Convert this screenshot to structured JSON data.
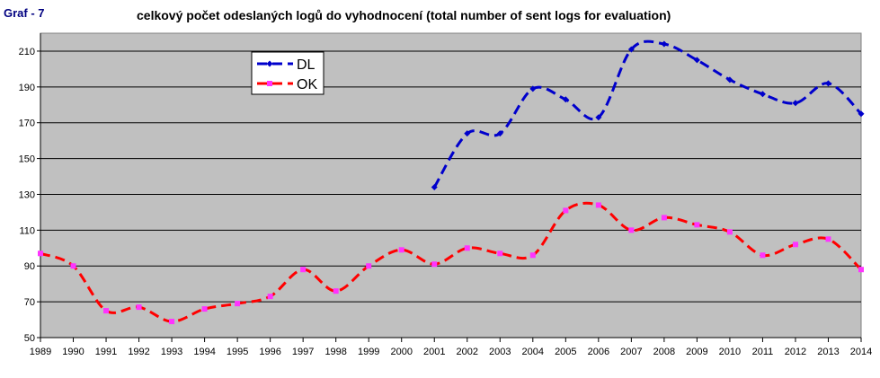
{
  "header": {
    "graf_label": "Graf - 7",
    "title": "celkový počet odeslaných logů do vyhodnocení (total number of sent logs for evaluation)"
  },
  "colors": {
    "plot_background": "#c0c0c0",
    "grid": "#000000",
    "dl": "#0000cc",
    "ok": "#ff0000",
    "ok_marker": "#ff33ff"
  },
  "chart_data": {
    "type": "line",
    "title": "celkový počet odeslaných logů do vyhodnocení (total number of sent logs for evaluation)",
    "xlabel": "",
    "ylabel": "",
    "x": [
      1989,
      1990,
      1991,
      1992,
      1993,
      1994,
      1995,
      1996,
      1997,
      1998,
      1999,
      2000,
      2001,
      2002,
      2003,
      2004,
      2005,
      2006,
      2007,
      2008,
      2009,
      2010,
      2011,
      2012,
      2013,
      2014
    ],
    "x_tick_labels": [
      "1989",
      "1990",
      "1991",
      "1992",
      "1993",
      "1994",
      "1995",
      "1996",
      "1997",
      "1998",
      "1999",
      "2000",
      "2001",
      "2002",
      "2003",
      "2004",
      "2005",
      "2006",
      "2007",
      "2008",
      "2009",
      "2010",
      "2011",
      "2012",
      "2013",
      "2014"
    ],
    "ylim": [
      50,
      220
    ],
    "y_ticks": [
      50,
      70,
      90,
      110,
      130,
      150,
      170,
      190,
      210
    ],
    "y_tick_labels": [
      "50",
      "70",
      "90",
      "110",
      "130",
      "150",
      "170",
      "190",
      "210"
    ],
    "grid": true,
    "legend_position": "top-left",
    "series": [
      {
        "name": "DL",
        "color": "#0000cc",
        "marker": "diamond",
        "values": [
          null,
          null,
          null,
          null,
          null,
          null,
          null,
          null,
          null,
          null,
          null,
          null,
          134,
          164,
          164,
          189,
          183,
          173,
          211,
          214,
          205,
          194,
          186,
          181,
          192,
          175
        ]
      },
      {
        "name": "OK",
        "color": "#ff0000",
        "marker": "square",
        "values": [
          97,
          90,
          65,
          67,
          59,
          66,
          69,
          73,
          88,
          76,
          90,
          99,
          91,
          100,
          97,
          96,
          121,
          124,
          110,
          117,
          113,
          109,
          96,
          102,
          105,
          88
        ]
      }
    ]
  }
}
